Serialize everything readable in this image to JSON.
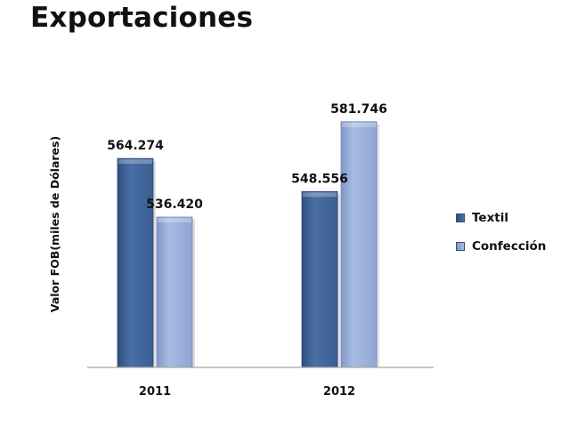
{
  "title": "Exportaciones",
  "chart_data": {
    "type": "bar",
    "categories": [
      "2011",
      "2012"
    ],
    "series": [
      {
        "name": "Textil",
        "values": [
          564.274,
          548.556
        ],
        "labels": [
          "564.274",
          "548.556"
        ],
        "color": "#4a6fa5"
      },
      {
        "name": "Confección",
        "values": [
          536.42,
          581.746
        ],
        "labels": [
          "536.420",
          "581.746"
        ],
        "color": "#9db2dc"
      }
    ],
    "ylabel": "Valor FOB(miles de Dólares)",
    "ylim": [
      465,
      588
    ],
    "grid": false,
    "legend": "right"
  }
}
